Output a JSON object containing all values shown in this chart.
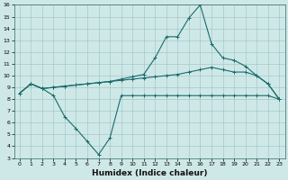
{
  "xlabel": "Humidex (Indice chaleur)",
  "bg_color": "#cee8e8",
  "line_color": "#1a6b6b",
  "grid_color": "#9fbfbf",
  "xlim": [
    -0.5,
    23.5
  ],
  "ylim": [
    3,
    16
  ],
  "xticks": [
    0,
    1,
    2,
    3,
    4,
    5,
    6,
    7,
    8,
    9,
    10,
    11,
    12,
    13,
    14,
    15,
    16,
    17,
    18,
    19,
    20,
    21,
    22,
    23
  ],
  "yticks": [
    3,
    4,
    5,
    6,
    7,
    8,
    9,
    10,
    11,
    12,
    13,
    14,
    15,
    16
  ],
  "line_dip_x": [
    0,
    1,
    2,
    3,
    4,
    5,
    6,
    7,
    8,
    9,
    10,
    11,
    12,
    13,
    14,
    15,
    16,
    17,
    18,
    19,
    20,
    21,
    22,
    23
  ],
  "line_dip_y": [
    8.5,
    9.3,
    8.9,
    8.3,
    6.5,
    5.5,
    4.4,
    3.3,
    4.7,
    8.3,
    8.3,
    8.3,
    8.3,
    8.3,
    8.3,
    8.3,
    8.3,
    8.3,
    8.3,
    8.3,
    8.3,
    8.3,
    8.3,
    8.0
  ],
  "line_mid_x": [
    0,
    1,
    2,
    3,
    4,
    5,
    6,
    7,
    8,
    9,
    10,
    11,
    12,
    13,
    14,
    15,
    16,
    17,
    18,
    19,
    20,
    21,
    22,
    23
  ],
  "line_mid_y": [
    8.5,
    9.3,
    8.9,
    9.0,
    9.1,
    9.2,
    9.3,
    9.4,
    9.5,
    9.6,
    9.7,
    9.8,
    9.9,
    10.0,
    10.1,
    10.3,
    10.5,
    10.7,
    10.5,
    10.3,
    10.3,
    10.0,
    9.3,
    8.0
  ],
  "line_top_x": [
    0,
    1,
    2,
    3,
    4,
    5,
    6,
    7,
    8,
    9,
    10,
    11,
    12,
    13,
    14,
    15,
    16,
    17,
    18,
    19,
    20,
    21,
    22,
    23
  ],
  "line_top_y": [
    8.5,
    9.3,
    8.9,
    9.0,
    9.1,
    9.2,
    9.3,
    9.4,
    9.5,
    9.7,
    9.9,
    10.1,
    11.5,
    13.3,
    13.3,
    14.9,
    16.0,
    12.7,
    11.5,
    11.3,
    10.8,
    10.0,
    9.3,
    8.0
  ],
  "marker": "+",
  "linewidth": 0.8,
  "markersize": 2.5,
  "xlabel_fontsize": 6.5,
  "tick_fontsize": 4.5
}
